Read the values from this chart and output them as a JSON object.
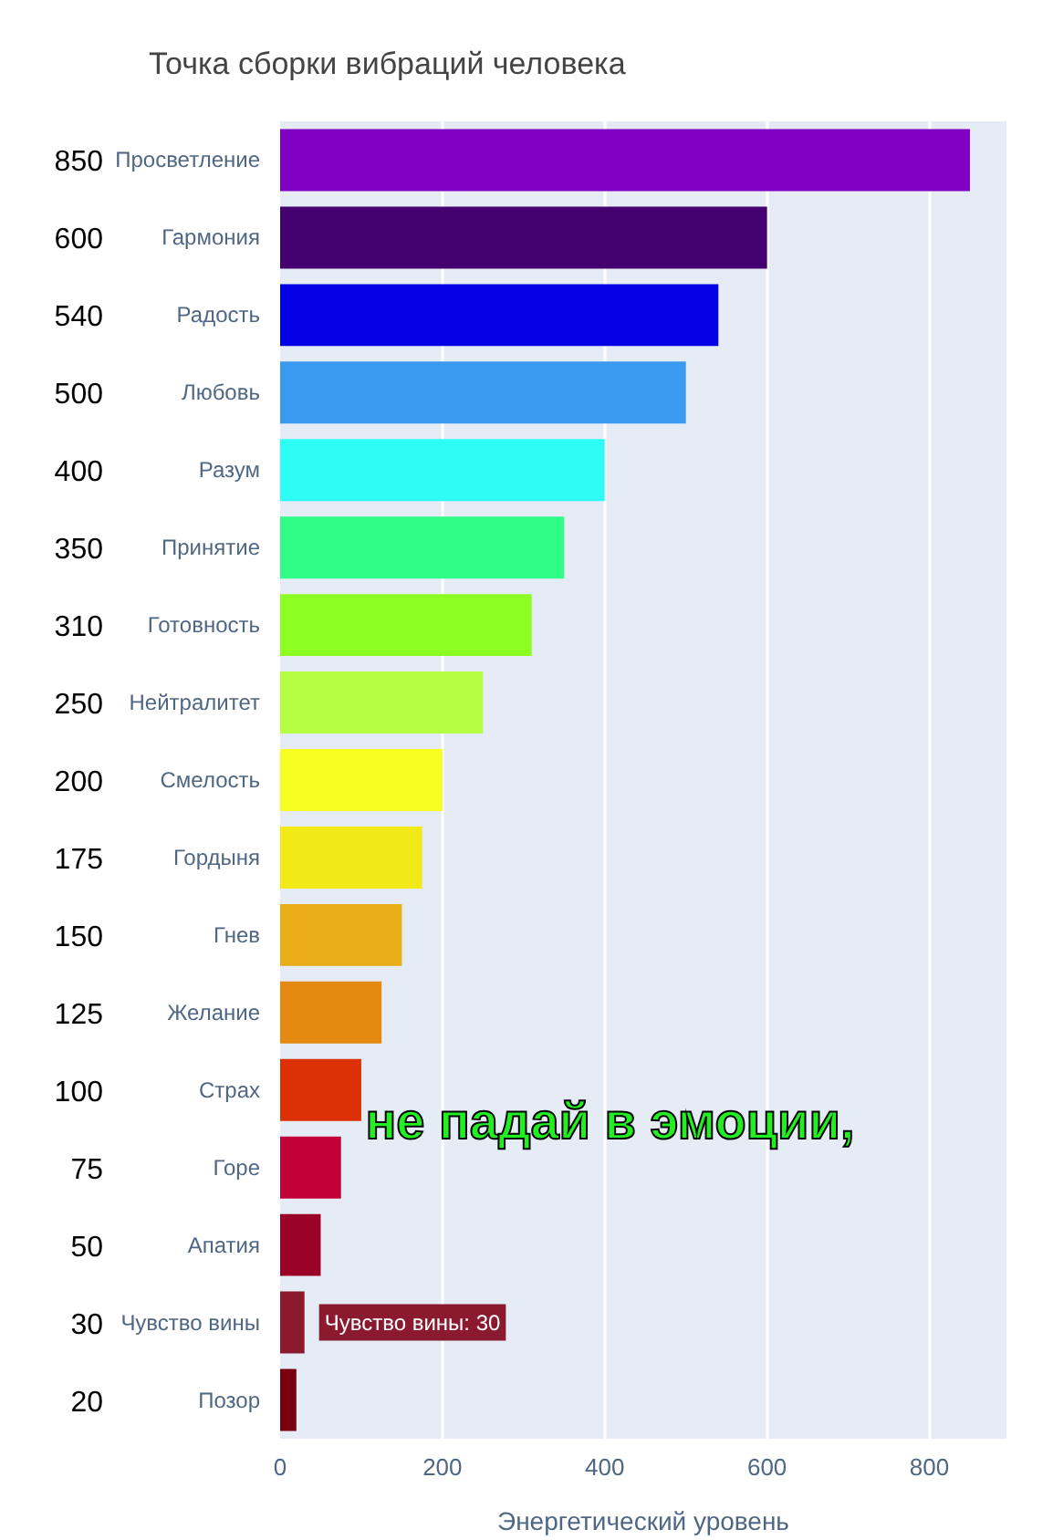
{
  "chart_data": {
    "type": "bar",
    "orientation": "horizontal",
    "title": "Точка сборки вибраций человека",
    "xlabel": "Энергетический уровень",
    "categories": [
      "Просветление",
      "Гармония",
      "Радость",
      "Любовь",
      "Разум",
      "Принятие",
      "Готовность",
      "Нейтралитет",
      "Смелость",
      "Гордыня",
      "Гнев",
      "Желание",
      "Страх",
      "Горе",
      "Апатия",
      "Чувство вины",
      "Позор"
    ],
    "values": [
      850,
      600,
      540,
      500,
      400,
      350,
      310,
      250,
      200,
      175,
      150,
      125,
      100,
      75,
      50,
      30,
      20
    ],
    "colors": [
      "#7f00c2",
      "#44006e",
      "#0400e6",
      "#3a9af0",
      "#2efdf6",
      "#30fd88",
      "#8cfe22",
      "#b6fe44",
      "#f7fe22",
      "#f2e918",
      "#e9ae17",
      "#e58a10",
      "#dc3005",
      "#c10138",
      "#9b0227",
      "#8b1a2e",
      "#7a0010"
    ],
    "xlim": [
      0,
      895
    ],
    "xticks": [
      0,
      200,
      400,
      600,
      800
    ],
    "grid": "x",
    "data_labels": true,
    "annotations": [
      {
        "text": "Чувство вины: 30",
        "x": 30,
        "y": "Чувство вины"
      },
      "не падай в эмоции,"
    ]
  }
}
